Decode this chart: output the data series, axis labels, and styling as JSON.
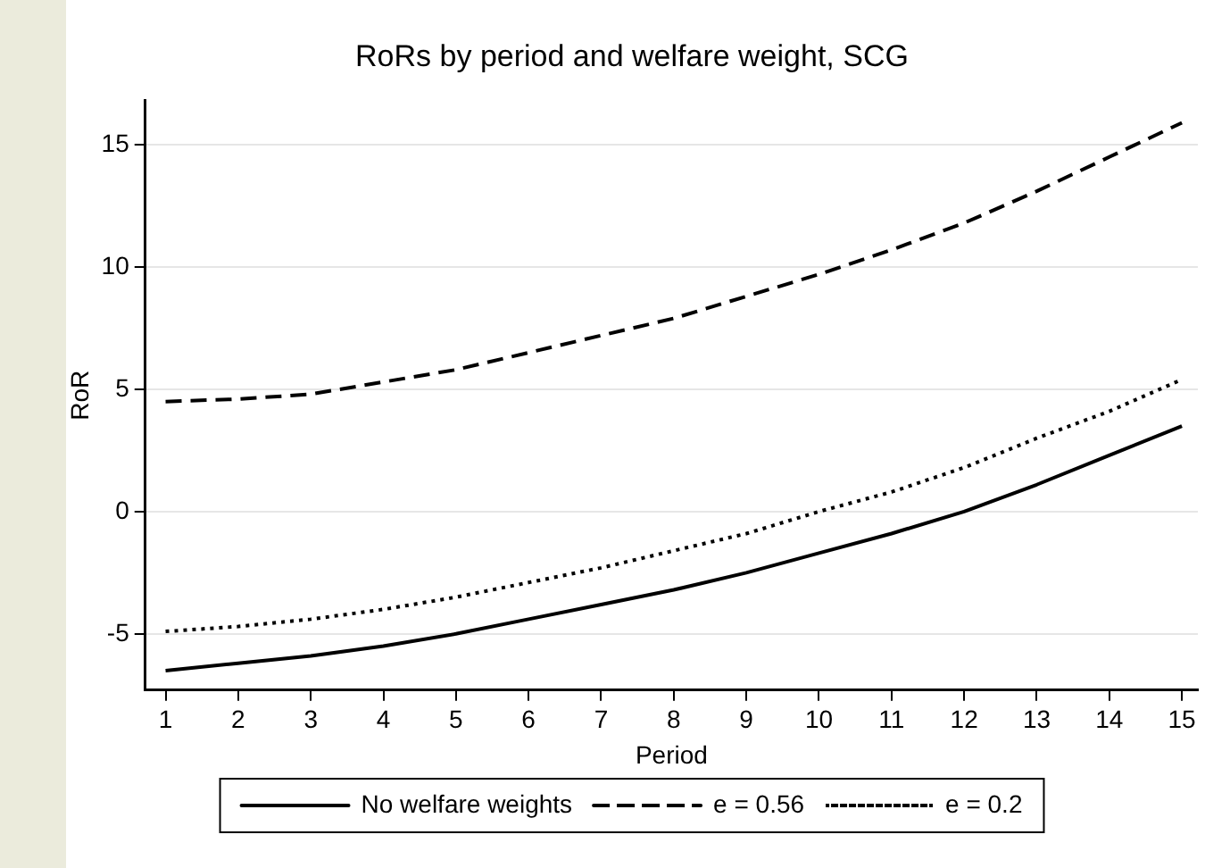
{
  "chart_data": {
    "type": "line",
    "title": "RoRs by period and welfare weight, SCG",
    "xlabel": "Period",
    "ylabel": "RoR",
    "x": [
      1,
      2,
      3,
      4,
      5,
      6,
      7,
      8,
      9,
      10,
      11,
      12,
      13,
      14,
      15
    ],
    "series": [
      {
        "name": "No welfare weights",
        "color": "#000000",
        "line_style": "solid",
        "values": [
          -6.5,
          -6.2,
          -5.9,
          -5.5,
          -5.0,
          -4.4,
          -3.8,
          -3.2,
          -2.5,
          -1.7,
          -0.9,
          0.0,
          1.1,
          2.3,
          3.5
        ]
      },
      {
        "name": "e = 0.56",
        "color": "#000000",
        "line_style": "dashed",
        "values": [
          4.5,
          4.6,
          4.8,
          5.3,
          5.8,
          6.5,
          7.2,
          7.9,
          8.8,
          9.7,
          10.7,
          11.8,
          13.1,
          14.5,
          15.9
        ]
      },
      {
        "name": "e = 0.2",
        "color": "#000000",
        "line_style": "dotted",
        "values": [
          -4.9,
          -4.7,
          -4.4,
          -4.0,
          -3.5,
          -2.9,
          -2.3,
          -1.6,
          -0.9,
          0.0,
          0.8,
          1.8,
          3.0,
          4.1,
          5.4
        ]
      }
    ],
    "xlim": [
      0.72,
      15.22
    ],
    "xticks": [
      1,
      2,
      3,
      4,
      5,
      6,
      7,
      8,
      9,
      10,
      11,
      12,
      13,
      14,
      15
    ],
    "ylim": [
      -7.3,
      16.8
    ],
    "yticks": [
      -5,
      0,
      5,
      10,
      15
    ],
    "grid": "y",
    "legend": "bottom",
    "marker": "none"
  }
}
